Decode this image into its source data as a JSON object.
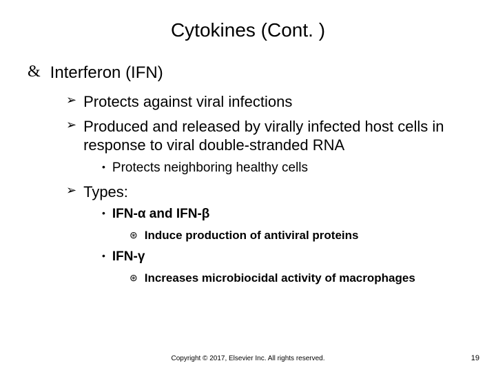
{
  "title": "Cytokines (Cont. )",
  "bullets": {
    "l1_bullet": "&",
    "l1_text": "Interferon (IFN)",
    "l2a_bullet": "➢",
    "l2a_text": "Protects against viral infections",
    "l2b_bullet": "➢",
    "l2b_text": "Produced and released by virally infected host cells in response to viral double-stranded RNA",
    "l3a_bullet": "•",
    "l3a_text": "Protects neighboring healthy cells",
    "l2c_bullet": "➢",
    "l2c_text": "Types:",
    "l3b_bullet": "•",
    "l3b_text": "IFN-α and IFN-β",
    "l4a_bullet": "⊛",
    "l4a_text": "Induce production of antiviral proteins",
    "l3c_bullet": "•",
    "l3c_text": "IFN-γ",
    "l4b_bullet": "⊛",
    "l4b_text": "Increases microbiocidal activity of macrophages"
  },
  "footer": {
    "copyright": "Copyright © 2017, Elsevier Inc. All rights reserved.",
    "page": "19"
  },
  "style": {
    "background": "#ffffff",
    "text_color": "#000000",
    "title_fontsize": 28,
    "l1_fontsize": 24,
    "l2_fontsize": 22,
    "l3_fontsize": 19,
    "l4_fontsize": 17,
    "copyright_fontsize": 10,
    "pagenum_fontsize": 11
  }
}
